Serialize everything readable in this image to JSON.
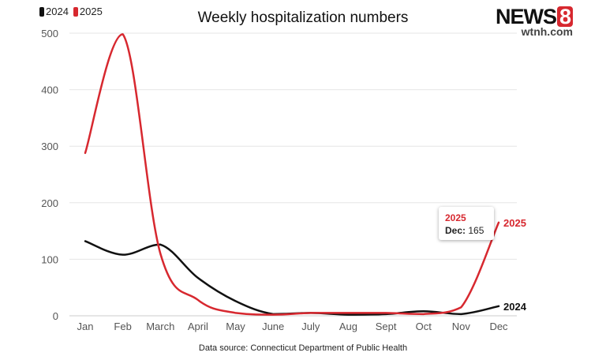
{
  "header": {
    "title": "Weekly hospitalization numbers"
  },
  "logo": {
    "main": "NEWS",
    "number": "8",
    "sub": "wtnh.com"
  },
  "footer": {
    "source": "Data source: Connecticut Department of Public Health"
  },
  "legend": [
    {
      "label": "2024",
      "color": "#111111"
    },
    {
      "label": "2025",
      "color": "#d7282f"
    }
  ],
  "tooltip": {
    "series": "2025",
    "label": "Dec:",
    "value": "165"
  },
  "chart_data": {
    "type": "line",
    "title": "Weekly hospitalization numbers",
    "xlabel": "",
    "ylabel": "",
    "ylim": [
      0,
      500
    ],
    "yticks": [
      0,
      100,
      200,
      300,
      400,
      500
    ],
    "categories": [
      "Jan",
      "Feb",
      "March",
      "April",
      "May",
      "June",
      "July",
      "Aug",
      "Sept",
      "Oct",
      "Nov",
      "Dec"
    ],
    "grid": true,
    "legend_position": "top-left",
    "series": [
      {
        "name": "2024",
        "color": "#111111",
        "end_label": "2024",
        "values": [
          132,
          108,
          126,
          67,
          26,
          3,
          5,
          2,
          3,
          8,
          3,
          17
        ]
      },
      {
        "name": "2025",
        "color": "#d7282f",
        "end_label": "2025",
        "values": [
          288,
          498,
          110,
          28,
          5,
          2,
          5,
          5,
          5,
          3,
          15,
          165
        ]
      }
    ]
  }
}
